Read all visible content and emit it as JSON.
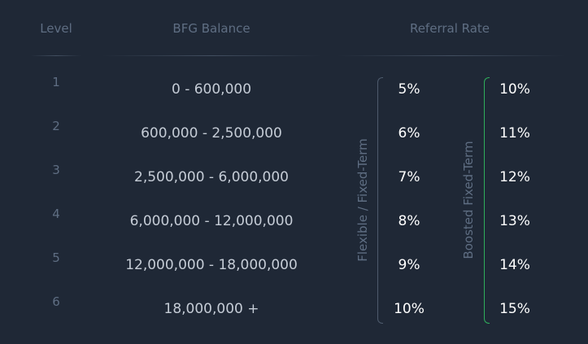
{
  "headers": {
    "level": "Level",
    "balance": "BFG Balance",
    "referral_rate": "Referral Rate"
  },
  "side_labels": {
    "flexible": "Flexible / Fixed-Term",
    "boosted": "Boosted Fixed-Term"
  },
  "rows": [
    {
      "level": "1",
      "balance": "0 - 600,000",
      "flexible": "5%",
      "boosted": "10%"
    },
    {
      "level": "2",
      "balance": "600,000 - 2,500,000",
      "flexible": "6%",
      "boosted": "11%"
    },
    {
      "level": "3",
      "balance": "2,500,000 - 6,000,000",
      "flexible": "7%",
      "boosted": "12%"
    },
    {
      "level": "4",
      "balance": "6,000,000 - 12,000,000",
      "flexible": "8%",
      "boosted": "13%"
    },
    {
      "level": "5",
      "balance": "12,000,000 - 18,000,000",
      "flexible": "9%",
      "boosted": "14%"
    },
    {
      "level": "6",
      "balance": "18,000,000 +",
      "flexible": "10%",
      "boosted": "15%"
    }
  ],
  "colors": {
    "background": "#1f2836",
    "muted_text": "#5f6e83",
    "balance_text": "#c5ccd6",
    "rate_text": "#ffffff",
    "boosted_accent": "#2fae5b"
  }
}
